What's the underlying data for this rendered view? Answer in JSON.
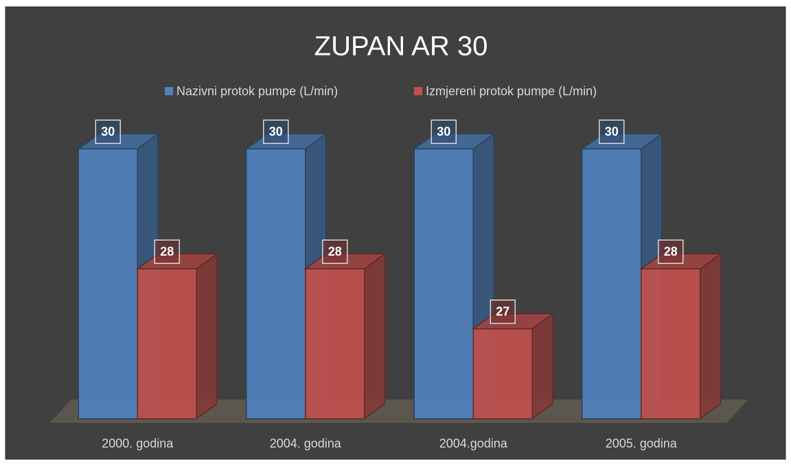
{
  "chart_data": {
    "type": "bar3d",
    "title": "ZUPAN AR 30",
    "categories": [
      "2000. godina",
      "2004. godina",
      "2004.godina",
      "2005. godina"
    ],
    "series": [
      {
        "name": "Nazivni protok pumpe (L/min)",
        "color": "#4f81bd",
        "values": [
          30,
          30,
          30,
          30
        ]
      },
      {
        "name": "Izmjereni protok pumpe (L/min)",
        "color": "#c0504d",
        "values": [
          28,
          28,
          27,
          28
        ]
      }
    ],
    "ylim": [
      25.5,
      30.5
    ],
    "legend": "top"
  }
}
